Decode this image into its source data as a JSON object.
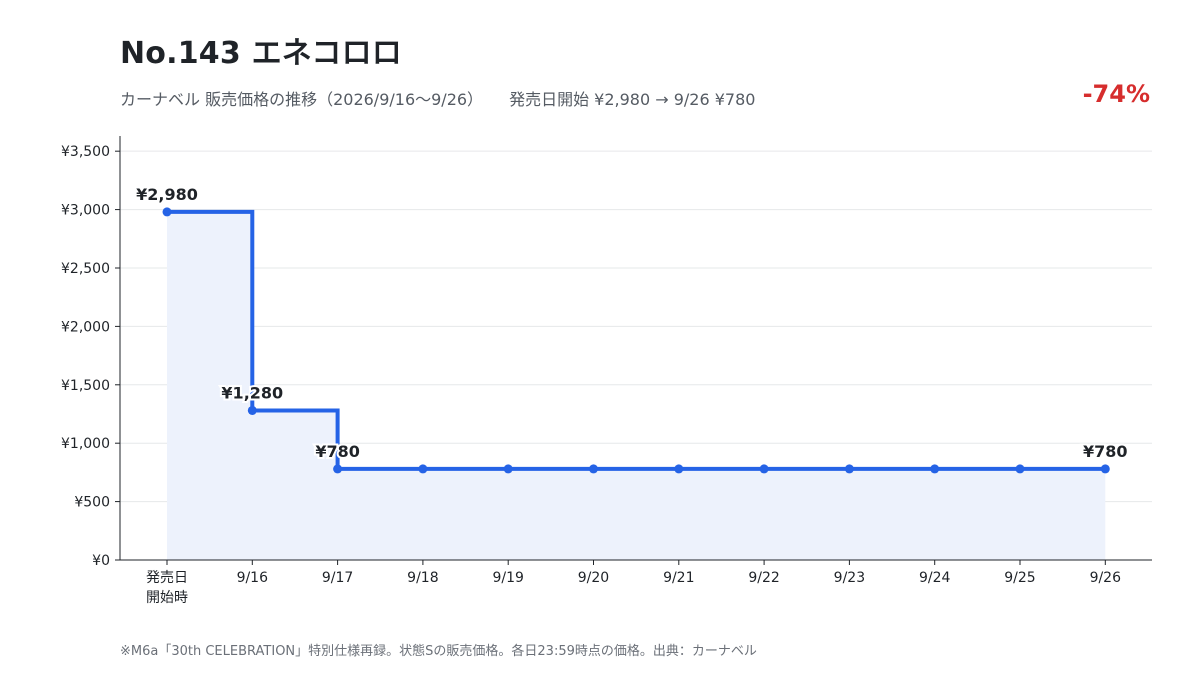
{
  "header": {
    "title": "No.143 エネコロロ",
    "subtitle_main": "カーナベル 販売価格の推移（2026/9/16〜9/26）",
    "subtitle_summary": "発売日開始 ¥2,980 → 9/26 ¥780",
    "change": "-74%"
  },
  "footnote": "※M6a「30th CELEBRATION」特別仕様再録。状態Sの販売価格。各日23:59時点の価格。出典：カーナベル",
  "colors": {
    "line": "#2563e6",
    "fill": "#edf2fc",
    "change": "#d62d2d",
    "grid": "#e6e8ea"
  },
  "chart_data": {
    "type": "line",
    "step": true,
    "categories": [
      "発売日\n開始時",
      "9/16",
      "9/17",
      "9/18",
      "9/19",
      "9/20",
      "9/21",
      "9/22",
      "9/23",
      "9/24",
      "9/25",
      "9/26"
    ],
    "values": [
      2980,
      1280,
      780,
      780,
      780,
      780,
      780,
      780,
      780,
      780,
      780,
      780
    ],
    "data_labels": [
      {
        "index": 0,
        "text": "¥2,980"
      },
      {
        "index": 1,
        "text": "¥1,280"
      },
      {
        "index": 2,
        "text": "¥780"
      },
      {
        "index": 11,
        "text": "¥780"
      }
    ],
    "yticks": [
      0,
      500,
      1000,
      1500,
      2000,
      2500,
      3000,
      3500
    ],
    "ytick_labels": [
      "¥0",
      "¥500",
      "¥1,000",
      "¥1,500",
      "¥2,000",
      "¥2,500",
      "¥3,000",
      "¥3,500"
    ],
    "ylim": [
      0,
      3630
    ],
    "grid": true,
    "area_fill": true
  }
}
